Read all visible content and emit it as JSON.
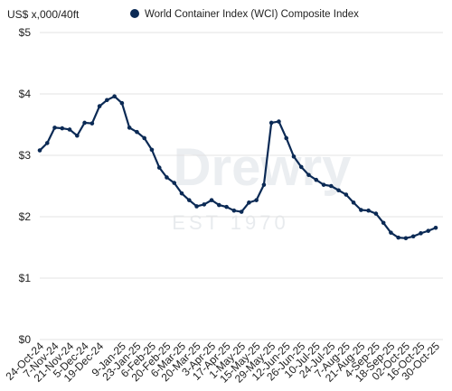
{
  "chart_data": {
    "type": "line",
    "unit_label": "US$ x,000/40ft",
    "title": "",
    "xlabel": "",
    "ylabel": "",
    "ylim": [
      0,
      5
    ],
    "yticks": [
      0,
      1,
      2,
      3,
      4,
      5
    ],
    "ytick_labels": [
      "$0",
      "$1",
      "$2",
      "$3",
      "$4",
      "$5"
    ],
    "grid": true,
    "legend_position": "top",
    "series_color": "#0b2a55",
    "watermark": {
      "name": "Drewry",
      "tagline": "EST 1970"
    },
    "x": [
      "24-Oct-24",
      "31-Oct-24",
      "7-Nov-24",
      "14-Nov-24",
      "21-Nov-24",
      "28-Nov-24",
      "5-Dec-24",
      "12-Dec-24",
      "19-Dec-24",
      "26-Dec-24",
      "2-Jan-25",
      "9-Jan-25",
      "16-Jan-25",
      "23-Jan-25",
      "30-Jan-25",
      "6-Feb-25",
      "13-Feb-25",
      "20-Feb-25",
      "27-Feb-25",
      "6-Mar-25",
      "13-Mar-25",
      "20-Mar-25",
      "27-Mar-25",
      "3-Apr-25",
      "10-Apr-25",
      "17-Apr-25",
      "24-Apr-25",
      "1-May-25",
      "8-May-25",
      "15-May-25",
      "22-May-25",
      "29-May-25",
      "5-Jun-25",
      "12-Jun-25",
      "19-Jun-25",
      "26-Jun-25",
      "3-Jul-25",
      "10-Jul-25",
      "17-Jul-25",
      "24-Jul-25",
      "31-Jul-25",
      "7-Aug-25",
      "14-Aug-25",
      "21-Aug-25",
      "28-Aug-25",
      "4-Sep-25",
      "11-Sep-25",
      "18-Sep-25",
      "25-Sep-25",
      "02-Oct-25",
      "09-Oct-25",
      "16-Oct-25",
      "23-Oct-25",
      "30-Oct-25"
    ],
    "x_tick_labels": [
      "24-Oct-24",
      "7-Nov-24",
      "21-Nov-24",
      "5-Dec-24",
      "19-Dec-24",
      "9-Jan-25",
      "23-Jan-25",
      "6-Feb-25",
      "20-Feb-25",
      "6-Mar-25",
      "20-Mar-25",
      "3-Apr-25",
      "17-Apr-25",
      "1-May-25",
      "15-May-25",
      "29-May-25",
      "12-Jun-25",
      "26-Jun-25",
      "10-Jul-25",
      "24-Jul-25",
      "7-Aug-25",
      "21-Aug-25",
      "4-Sep-25",
      "18-Sep-25",
      "02-Oct-25",
      "16-Oct-25",
      "30-Oct-25"
    ],
    "series": [
      {
        "name": "World Container Index (WCI) Composite Index",
        "values": [
          3.08,
          3.2,
          3.45,
          3.44,
          3.42,
          3.32,
          3.53,
          3.52,
          3.8,
          3.9,
          3.96,
          3.85,
          3.45,
          3.38,
          3.28,
          3.09,
          2.8,
          2.64,
          2.55,
          2.38,
          2.27,
          2.17,
          2.2,
          2.27,
          2.19,
          2.16,
          2.1,
          2.08,
          2.23,
          2.27,
          2.52,
          3.53,
          3.55,
          3.28,
          2.98,
          2.81,
          2.68,
          2.6,
          2.52,
          2.5,
          2.43,
          2.36,
          2.23,
          2.11,
          2.1,
          2.05,
          1.9,
          1.74,
          1.66,
          1.65,
          1.68,
          1.73,
          1.77,
          1.82
        ]
      }
    ]
  }
}
